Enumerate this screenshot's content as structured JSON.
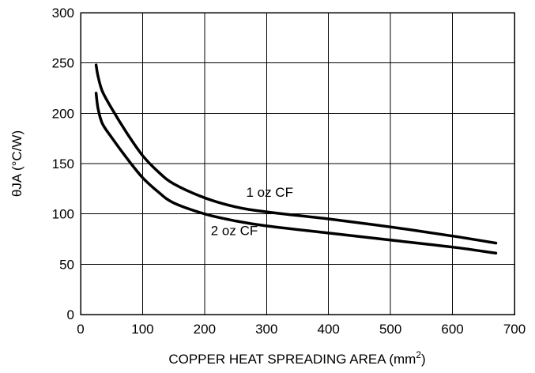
{
  "chart_data": {
    "type": "line",
    "xlabel": "COPPER HEAT SPREADING AREA (mm",
    "xlabel_sup": "2",
    "xlabel_end": ")",
    "ylabel": "θJA (°C/W)",
    "xlim": [
      0,
      700
    ],
    "ylim": [
      0,
      300
    ],
    "xticks": [
      0,
      100,
      200,
      300,
      400,
      500,
      600,
      700
    ],
    "yticks": [
      0,
      50,
      100,
      150,
      200,
      250,
      300
    ],
    "grid": true,
    "series": [
      {
        "name": "1 oz CF",
        "x": [
          25,
          28,
          35,
          50,
          75,
          100,
          125,
          150,
          200,
          250,
          300,
          400,
          500,
          600,
          670
        ],
        "y": [
          248,
          237,
          222,
          205,
          180,
          158,
          142,
          130,
          116,
          107,
          102,
          95,
          87,
          78,
          71
        ]
      },
      {
        "name": "2 oz CF",
        "x": [
          25,
          28,
          35,
          50,
          75,
          100,
          125,
          150,
          200,
          250,
          300,
          400,
          500,
          600,
          670
        ],
        "y": [
          220,
          205,
          190,
          176,
          155,
          136,
          122,
          111,
          100,
          93,
          88,
          81,
          74,
          67,
          61
        ]
      }
    ],
    "annotations": [
      {
        "text": "1 oz CF",
        "x": 305,
        "y": 117
      },
      {
        "text": "2 oz CF",
        "x": 248,
        "y": 79
      }
    ]
  }
}
